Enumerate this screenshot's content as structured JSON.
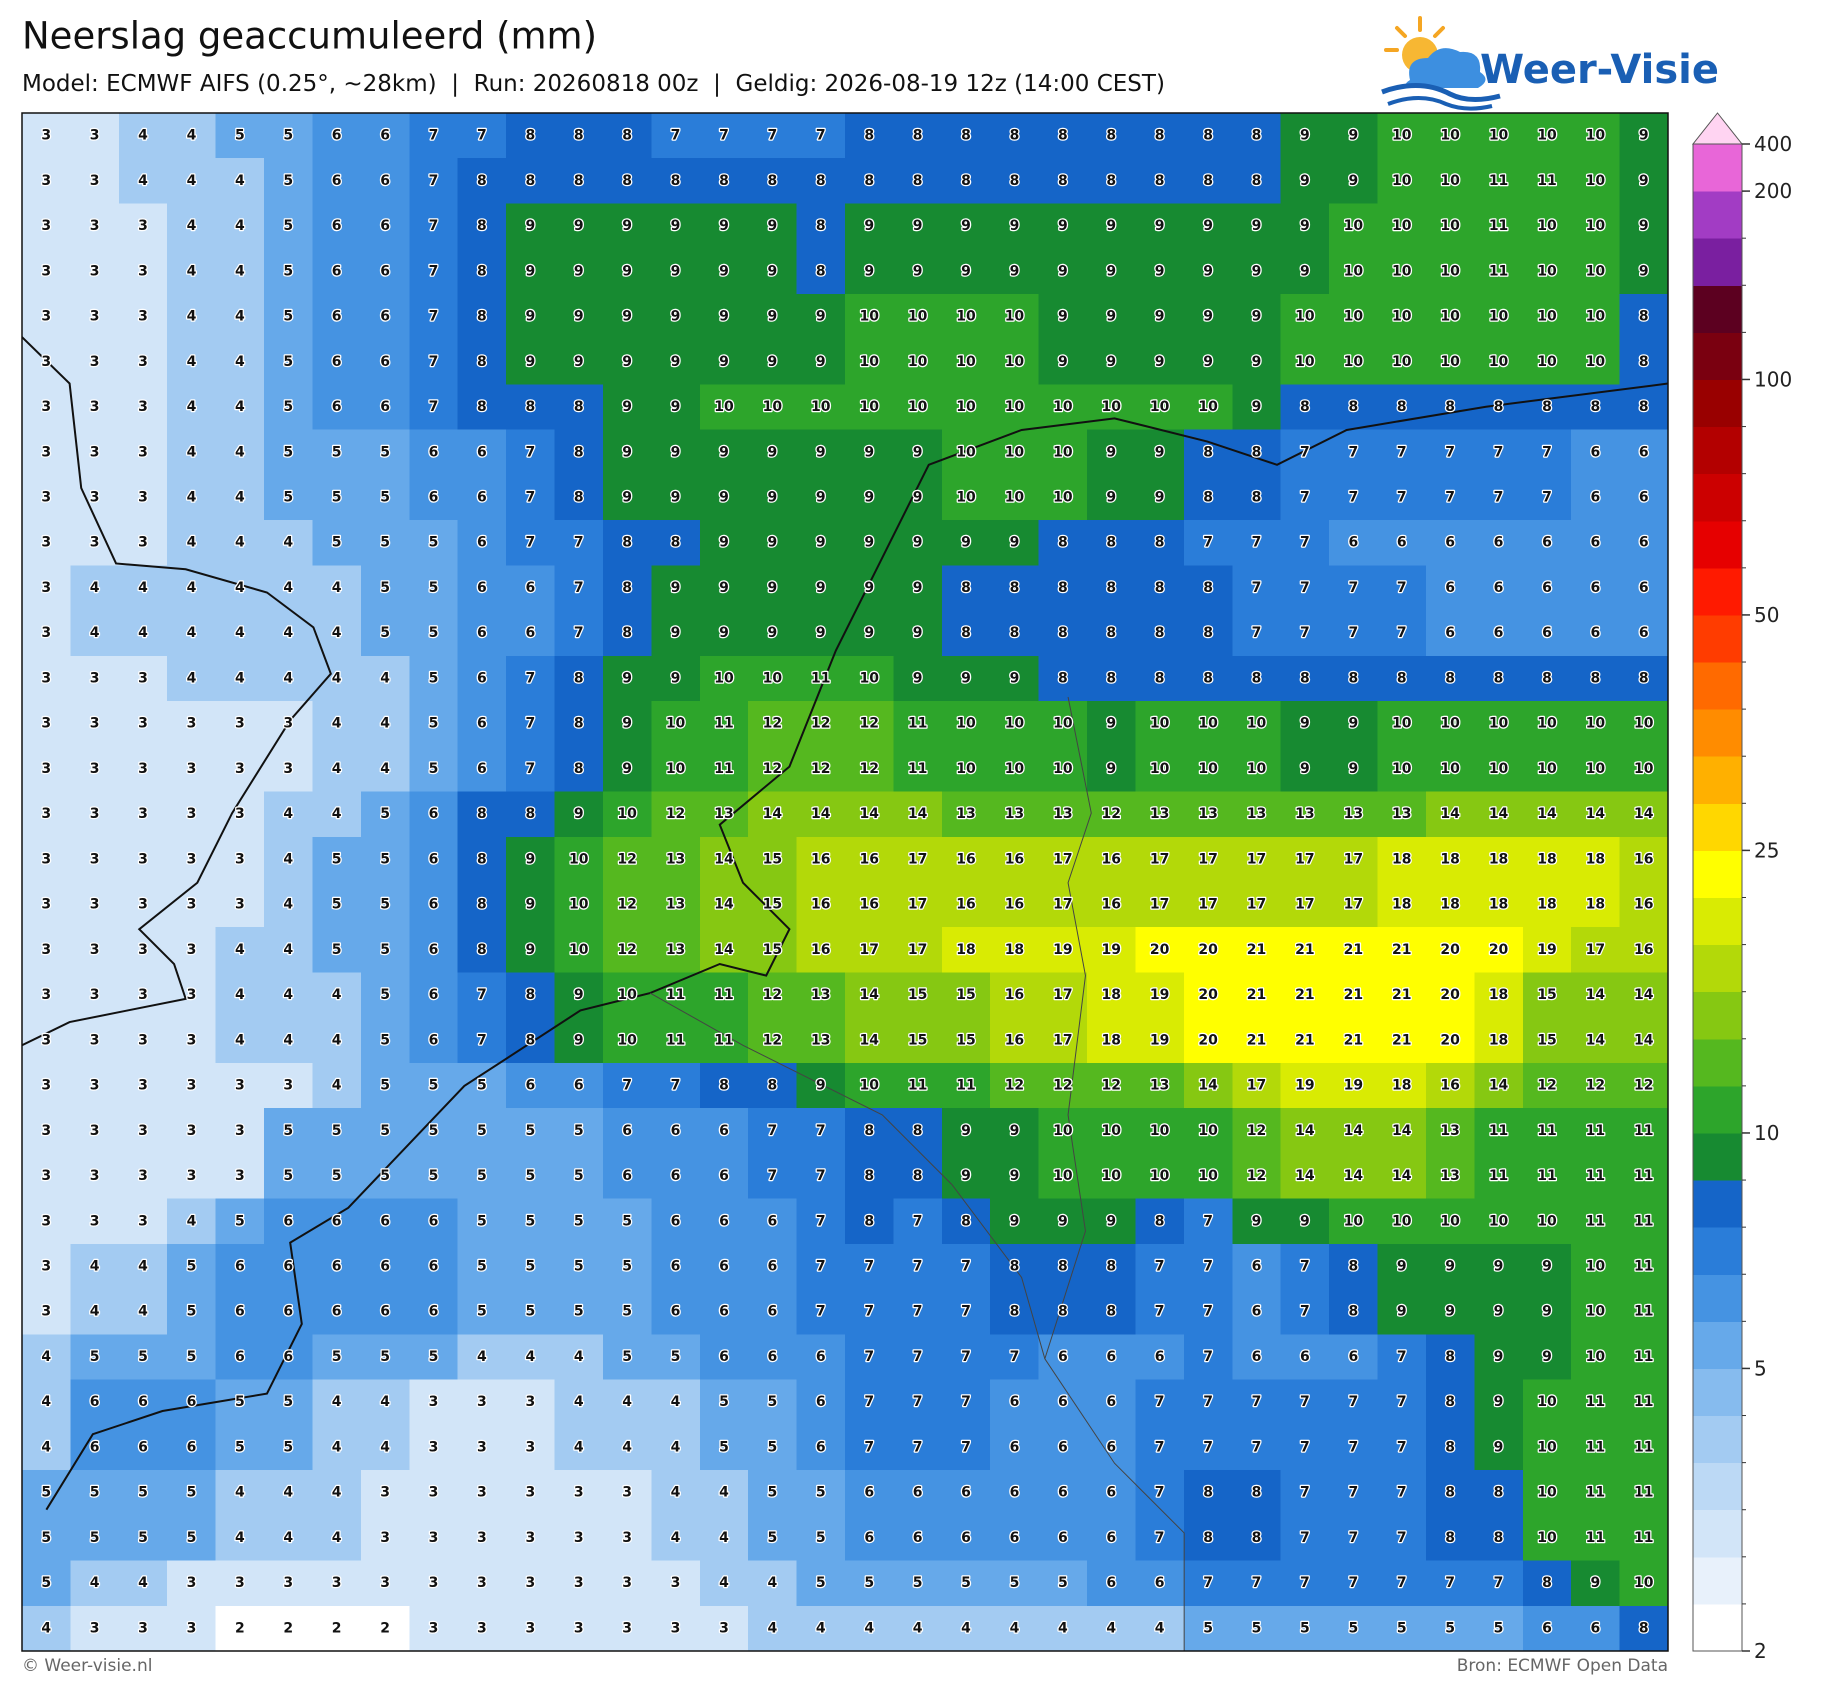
{
  "chart_data": {
    "type": "grid",
    "title": "Neerslag geaccumuleerd (mm)",
    "subtitle": "Model: ECMWF AIFS (0.25°, ~28km)  |  Run: 20260818 00z  |  Geldig: 2026-08-19 12z (14:00 CEST)",
    "values": [
      [
        3,
        3,
        4,
        4,
        5,
        5,
        6,
        6,
        7,
        7,
        8,
        8,
        8,
        7,
        7,
        7,
        7,
        8,
        8,
        8,
        8,
        8,
        8,
        8,
        8,
        8,
        9,
        9,
        10,
        10,
        10,
        10,
        10,
        9
      ],
      [
        3,
        3,
        4,
        4,
        4,
        5,
        6,
        6,
        7,
        8,
        8,
        8,
        8,
        8,
        8,
        8,
        8,
        8,
        8,
        8,
        8,
        8,
        8,
        8,
        8,
        8,
        9,
        9,
        10,
        10,
        11,
        11,
        10,
        9
      ],
      [
        3,
        3,
        3,
        4,
        4,
        5,
        6,
        6,
        7,
        8,
        9,
        9,
        9,
        9,
        9,
        9,
        8,
        9,
        9,
        9,
        9,
        9,
        9,
        9,
        9,
        9,
        9,
        10,
        10,
        10,
        11,
        10,
        10,
        9
      ],
      [
        3,
        3,
        3,
        4,
        4,
        5,
        6,
        6,
        7,
        8,
        9,
        9,
        9,
        9,
        9,
        9,
        8,
        9,
        9,
        9,
        9,
        9,
        9,
        9,
        9,
        9,
        9,
        10,
        10,
        10,
        11,
        10,
        10,
        9
      ],
      [
        3,
        3,
        3,
        4,
        4,
        5,
        6,
        6,
        7,
        8,
        9,
        9,
        9,
        9,
        9,
        9,
        9,
        10,
        10,
        10,
        10,
        9,
        9,
        9,
        9,
        9,
        10,
        10,
        10,
        10,
        10,
        10,
        10,
        8
      ],
      [
        3,
        3,
        3,
        4,
        4,
        5,
        6,
        6,
        7,
        8,
        9,
        9,
        9,
        9,
        9,
        9,
        9,
        10,
        10,
        10,
        10,
        9,
        9,
        9,
        9,
        9,
        10,
        10,
        10,
        10,
        10,
        10,
        10,
        8
      ],
      [
        3,
        3,
        3,
        4,
        4,
        5,
        6,
        6,
        7,
        8,
        8,
        8,
        9,
        9,
        10,
        10,
        10,
        10,
        10,
        10,
        10,
        10,
        10,
        10,
        10,
        9,
        8,
        8,
        8,
        8,
        8,
        8,
        8,
        8
      ],
      [
        3,
        3,
        3,
        4,
        4,
        5,
        5,
        5,
        6,
        6,
        7,
        8,
        9,
        9,
        9,
        9,
        9,
        9,
        9,
        10,
        10,
        10,
        9,
        9,
        8,
        8,
        7,
        7,
        7,
        7,
        7,
        7,
        6,
        6
      ],
      [
        3,
        3,
        3,
        4,
        4,
        5,
        5,
        5,
        6,
        6,
        7,
        8,
        9,
        9,
        9,
        9,
        9,
        9,
        9,
        10,
        10,
        10,
        9,
        9,
        8,
        8,
        7,
        7,
        7,
        7,
        7,
        7,
        6,
        6
      ],
      [
        3,
        3,
        3,
        4,
        4,
        4,
        5,
        5,
        5,
        6,
        7,
        7,
        8,
        8,
        9,
        9,
        9,
        9,
        9,
        9,
        9,
        8,
        8,
        8,
        7,
        7,
        7,
        6,
        6,
        6,
        6,
        6,
        6,
        6
      ],
      [
        3,
        4,
        4,
        4,
        4,
        4,
        4,
        5,
        5,
        6,
        6,
        7,
        8,
        9,
        9,
        9,
        9,
        9,
        9,
        8,
        8,
        8,
        8,
        8,
        8,
        7,
        7,
        7,
        7,
        6,
        6,
        6,
        6,
        6
      ],
      [
        3,
        4,
        4,
        4,
        4,
        4,
        4,
        5,
        5,
        6,
        6,
        7,
        8,
        9,
        9,
        9,
        9,
        9,
        9,
        8,
        8,
        8,
        8,
        8,
        8,
        7,
        7,
        7,
        7,
        6,
        6,
        6,
        6,
        6
      ],
      [
        3,
        3,
        3,
        4,
        4,
        4,
        4,
        4,
        5,
        6,
        7,
        8,
        9,
        9,
        10,
        10,
        11,
        10,
        9,
        9,
        9,
        8,
        8,
        8,
        8,
        8,
        8,
        8,
        8,
        8,
        8,
        8,
        8,
        8
      ],
      [
        3,
        3,
        3,
        3,
        3,
        3,
        4,
        4,
        5,
        6,
        7,
        8,
        9,
        10,
        11,
        12,
        12,
        12,
        11,
        10,
        10,
        10,
        9,
        10,
        10,
        10,
        9,
        9,
        10,
        10,
        10,
        10,
        10,
        10
      ],
      [
        3,
        3,
        3,
        3,
        3,
        3,
        4,
        4,
        5,
        6,
        7,
        8,
        9,
        10,
        11,
        12,
        12,
        12,
        11,
        10,
        10,
        10,
        9,
        10,
        10,
        10,
        9,
        9,
        10,
        10,
        10,
        10,
        10,
        10
      ],
      [
        3,
        3,
        3,
        3,
        3,
        4,
        4,
        5,
        6,
        8,
        8,
        9,
        10,
        12,
        13,
        14,
        14,
        14,
        14,
        13,
        13,
        13,
        12,
        13,
        13,
        13,
        13,
        13,
        13,
        14,
        14,
        14,
        14,
        14
      ],
      [
        3,
        3,
        3,
        3,
        3,
        4,
        5,
        5,
        6,
        8,
        9,
        10,
        12,
        13,
        14,
        15,
        16,
        16,
        17,
        16,
        16,
        17,
        16,
        17,
        17,
        17,
        17,
        17,
        18,
        18,
        18,
        18,
        18,
        16
      ],
      [
        3,
        3,
        3,
        3,
        3,
        4,
        5,
        5,
        6,
        8,
        9,
        10,
        12,
        13,
        14,
        15,
        16,
        16,
        17,
        16,
        16,
        17,
        16,
        17,
        17,
        17,
        17,
        17,
        18,
        18,
        18,
        18,
        18,
        16
      ],
      [
        3,
        3,
        3,
        3,
        4,
        4,
        5,
        5,
        6,
        8,
        9,
        10,
        12,
        13,
        14,
        15,
        16,
        17,
        17,
        18,
        18,
        19,
        19,
        20,
        20,
        21,
        21,
        21,
        21,
        20,
        20,
        19,
        17,
        16
      ],
      [
        3,
        3,
        3,
        3,
        4,
        4,
        4,
        5,
        6,
        7,
        8,
        9,
        10,
        11,
        11,
        12,
        13,
        14,
        15,
        15,
        16,
        17,
        18,
        19,
        20,
        21,
        21,
        21,
        21,
        20,
        18,
        15,
        14,
        14
      ],
      [
        3,
        3,
        3,
        3,
        4,
        4,
        4,
        5,
        6,
        7,
        8,
        9,
        10,
        11,
        11,
        12,
        13,
        14,
        15,
        15,
        16,
        17,
        18,
        19,
        20,
        21,
        21,
        21,
        21,
        20,
        18,
        15,
        14,
        14
      ],
      [
        3,
        3,
        3,
        3,
        3,
        3,
        4,
        5,
        5,
        5,
        6,
        6,
        7,
        7,
        8,
        8,
        9,
        10,
        11,
        11,
        12,
        12,
        12,
        13,
        14,
        17,
        19,
        19,
        18,
        16,
        14,
        12,
        12,
        12
      ],
      [
        3,
        3,
        3,
        3,
        3,
        5,
        5,
        5,
        5,
        5,
        5,
        5,
        6,
        6,
        6,
        7,
        7,
        8,
        8,
        9,
        9,
        10,
        10,
        10,
        10,
        12,
        14,
        14,
        14,
        13,
        11,
        11,
        11,
        11
      ],
      [
        3,
        3,
        3,
        3,
        3,
        5,
        5,
        5,
        5,
        5,
        5,
        5,
        6,
        6,
        6,
        7,
        7,
        8,
        8,
        9,
        9,
        10,
        10,
        10,
        10,
        12,
        14,
        14,
        14,
        13,
        11,
        11,
        11,
        11
      ],
      [
        3,
        3,
        3,
        4,
        5,
        6,
        6,
        6,
        6,
        5,
        5,
        5,
        5,
        6,
        6,
        6,
        7,
        8,
        7,
        8,
        9,
        9,
        9,
        8,
        7,
        9,
        9,
        10,
        10,
        10,
        10,
        10,
        11,
        11
      ],
      [
        3,
        4,
        4,
        5,
        6,
        6,
        6,
        6,
        6,
        5,
        5,
        5,
        5,
        6,
        6,
        6,
        7,
        7,
        7,
        7,
        8,
        8,
        8,
        7,
        7,
        6,
        7,
        8,
        9,
        9,
        9,
        9,
        10,
        11
      ],
      [
        3,
        4,
        4,
        5,
        6,
        6,
        6,
        6,
        6,
        5,
        5,
        5,
        5,
        6,
        6,
        6,
        7,
        7,
        7,
        7,
        8,
        8,
        8,
        7,
        7,
        6,
        7,
        8,
        9,
        9,
        9,
        9,
        10,
        11
      ],
      [
        4,
        5,
        5,
        5,
        6,
        6,
        5,
        5,
        5,
        4,
        4,
        4,
        5,
        5,
        6,
        6,
        6,
        7,
        7,
        7,
        7,
        6,
        6,
        6,
        7,
        6,
        6,
        6,
        7,
        8,
        9,
        9,
        10,
        11
      ],
      [
        4,
        6,
        6,
        6,
        5,
        5,
        4,
        4,
        3,
        3,
        3,
        4,
        4,
        4,
        5,
        5,
        6,
        7,
        7,
        7,
        6,
        6,
        6,
        7,
        7,
        7,
        7,
        7,
        7,
        8,
        9,
        10,
        11,
        11
      ],
      [
        4,
        6,
        6,
        6,
        5,
        5,
        4,
        4,
        3,
        3,
        3,
        4,
        4,
        4,
        5,
        5,
        6,
        7,
        7,
        7,
        6,
        6,
        6,
        7,
        7,
        7,
        7,
        7,
        7,
        8,
        9,
        10,
        11,
        11
      ],
      [
        5,
        5,
        5,
        5,
        4,
        4,
        4,
        3,
        3,
        3,
        3,
        3,
        3,
        4,
        4,
        5,
        5,
        6,
        6,
        6,
        6,
        6,
        6,
        7,
        8,
        8,
        7,
        7,
        7,
        8,
        8,
        10,
        11,
        11
      ],
      [
        5,
        5,
        5,
        5,
        4,
        4,
        4,
        3,
        3,
        3,
        3,
        3,
        3,
        4,
        4,
        5,
        5,
        6,
        6,
        6,
        6,
        6,
        6,
        7,
        8,
        8,
        7,
        7,
        7,
        8,
        8,
        10,
        11,
        11
      ],
      [
        5,
        4,
        4,
        3,
        3,
        3,
        3,
        3,
        3,
        3,
        3,
        3,
        3,
        3,
        4,
        4,
        5,
        5,
        5,
        5,
        5,
        5,
        6,
        6,
        7,
        7,
        7,
        7,
        7,
        7,
        7,
        8,
        9,
        10
      ],
      [
        4,
        3,
        3,
        3,
        2,
        2,
        2,
        2,
        3,
        3,
        3,
        3,
        3,
        3,
        3,
        4,
        4,
        4,
        4,
        4,
        4,
        4,
        4,
        4,
        5,
        5,
        5,
        5,
        5,
        5,
        5,
        6,
        6,
        8
      ]
    ],
    "colorbar": {
      "ticks": [
        2,
        5,
        10,
        25,
        50,
        100,
        200,
        400
      ],
      "levels": [
        2,
        2.5,
        3,
        3.5,
        4,
        4.5,
        5,
        6,
        7,
        8,
        9,
        10,
        12,
        14,
        16,
        18,
        20,
        25,
        30,
        35,
        40,
        45,
        50,
        60,
        70,
        80,
        90,
        100,
        125,
        150,
        175,
        200,
        400
      ],
      "colors": [
        "#ffffff",
        "#e8f1fb",
        "#d2e5f8",
        "#bcd9f5",
        "#a3cbf2",
        "#86bbee",
        "#66a9ea",
        "#4593e2",
        "#2a7dd9",
        "#1565c8",
        "#178a31",
        "#2da52b",
        "#55b81f",
        "#86c812",
        "#b3d909",
        "#d9eb03",
        "#ffff00",
        "#ffd700",
        "#ffb000",
        "#ff8c00",
        "#ff6a00",
        "#ff3c00",
        "#ff1a00",
        "#e60000",
        "#cc0000",
        "#b30000",
        "#990000",
        "#7a0010",
        "#5c0020",
        "#7a1fa0",
        "#a23cc4",
        "#e866d8"
      ],
      "extend_color": "#ffd4f2"
    }
  },
  "logo": "Weer-Visie",
  "footer": {
    "left": "© Weer-visie.nl",
    "right": "Bron: ECMWF Open Data"
  }
}
